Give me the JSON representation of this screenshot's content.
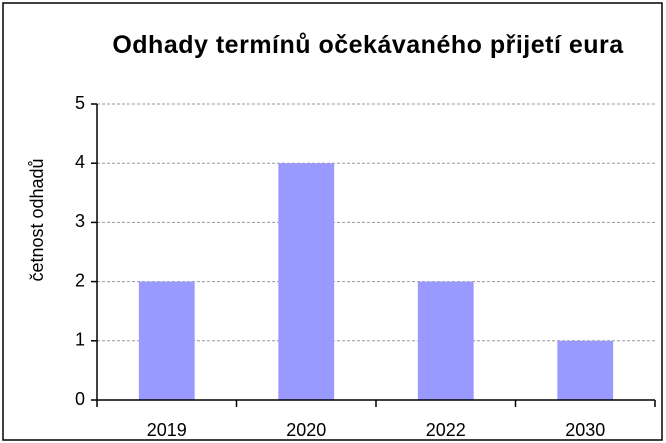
{
  "chart_data": {
    "type": "bar",
    "title": "Odhady termínů očekávaného přijetí eura",
    "ylabel": "četnost odhadů",
    "categories": [
      "2019",
      "2020",
      "2022",
      "2030"
    ],
    "values": [
      2,
      4,
      2,
      1
    ],
    "color": "#9999ff",
    "ylim": [
      0,
      5
    ],
    "yticks": [
      0,
      1,
      2,
      3,
      4,
      5
    ],
    "grid": true
  }
}
